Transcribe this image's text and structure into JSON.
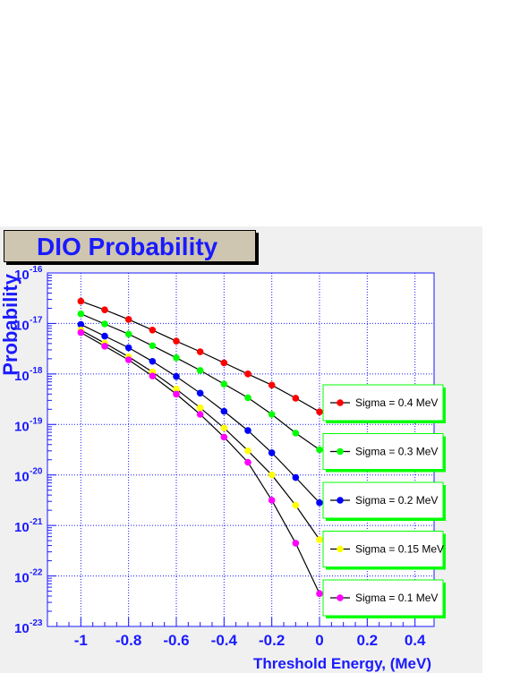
{
  "chart_data": {
    "type": "line",
    "title": "DIO Probability",
    "xlabel": "Threshold Energy, (MeV)",
    "ylabel": "Probability",
    "xlim": [
      -1.14,
      0.48
    ],
    "ylim_log10": [
      -23,
      -16
    ],
    "y_scale": "log",
    "grid": true,
    "legend_position": "right",
    "x_ticks": [
      -1,
      -0.8,
      -0.6,
      -0.4,
      -0.2,
      0,
      0.2,
      0.4
    ],
    "x_tick_labels": [
      "-1",
      "-0.8",
      "-0.6",
      "-0.4",
      "-0.2",
      "0",
      "0.2",
      "0.4"
    ],
    "y_ticks_log10": [
      -16,
      -17,
      -18,
      -19,
      -20,
      -21,
      -22,
      -23
    ],
    "y_tick_base": "10",
    "y_tick_exponents": [
      "-16",
      "-17",
      "-18",
      "-19",
      "-20",
      "-21",
      "-22",
      "-23"
    ],
    "x": [
      -1.0,
      -0.9,
      -0.8,
      -0.7,
      -0.6,
      -0.5,
      -0.4,
      -0.3,
      -0.2,
      -0.1,
      0.0
    ],
    "series": [
      {
        "name": "Sigma = 0.4 MeV",
        "color": "#ff0000",
        "log10_values": [
          -16.56,
          -16.73,
          -16.92,
          -17.13,
          -17.35,
          -17.56,
          -17.78,
          -18.0,
          -18.22,
          -18.48,
          -18.75
        ]
      },
      {
        "name": "Sigma = 0.3 MeV",
        "color": "#00ff00",
        "log10_values": [
          -16.81,
          -17.01,
          -17.21,
          -17.44,
          -17.68,
          -17.93,
          -18.2,
          -18.47,
          -18.8,
          -19.17,
          -19.5
        ]
      },
      {
        "name": "Sigma = 0.2 MeV",
        "color": "#0000ff",
        "log10_values": [
          -17.02,
          -17.25,
          -17.48,
          -17.75,
          -18.05,
          -18.38,
          -18.74,
          -19.12,
          -19.56,
          -20.05,
          -20.55
        ]
      },
      {
        "name": "Sigma = 0.15 MeV",
        "color": "#ffff00",
        "log10_values": [
          -17.13,
          -17.39,
          -17.66,
          -17.96,
          -18.3,
          -18.67,
          -19.07,
          -19.52,
          -20.0,
          -20.6,
          -21.28
        ]
      },
      {
        "name": "Sigma = 0.1 MeV",
        "color": "#ff00ff",
        "log10_values": [
          -17.18,
          -17.45,
          -17.72,
          -18.04,
          -18.4,
          -18.8,
          -19.25,
          -19.75,
          -20.5,
          -21.35,
          -22.35
        ]
      }
    ]
  }
}
